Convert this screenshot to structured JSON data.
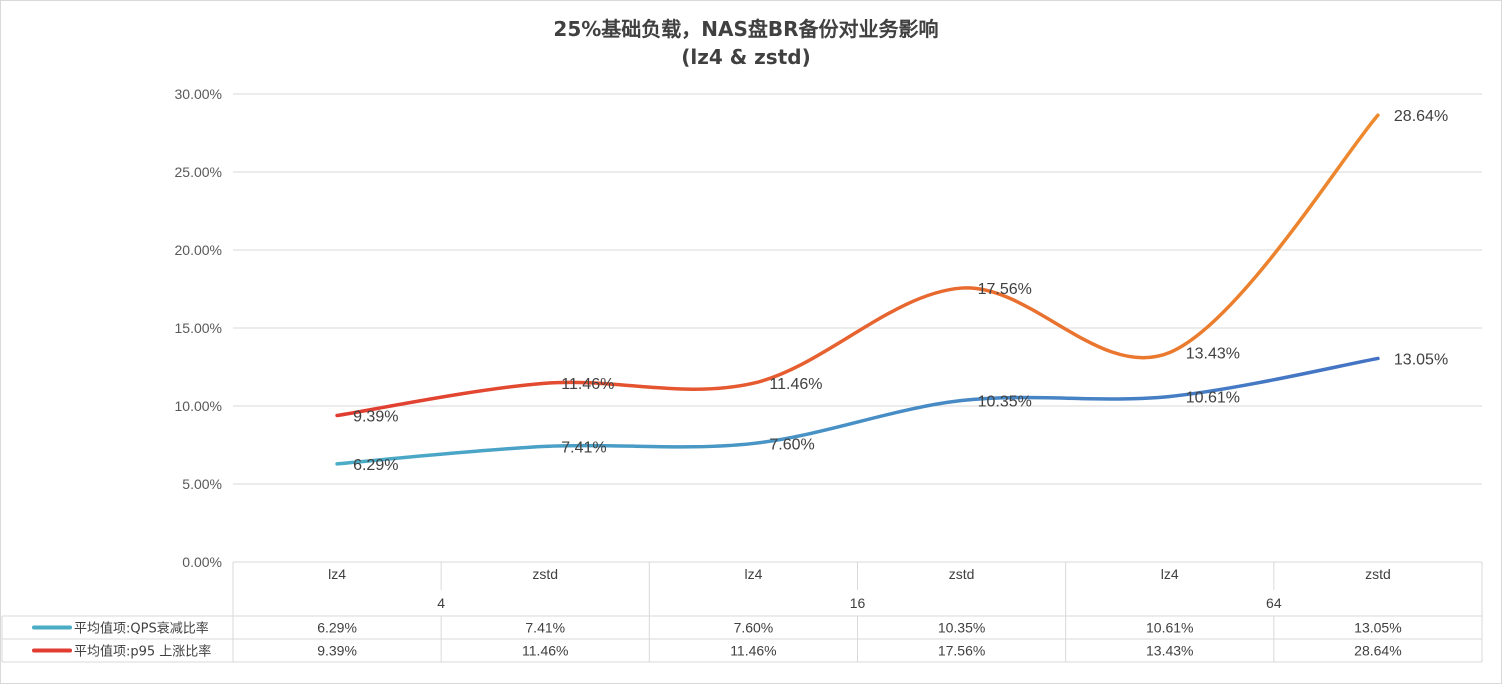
{
  "chart_data": {
    "type": "line",
    "title": "25%基础负载，NAS盘BR备份对业务影响",
    "subtitle": "(lz4 & zstd)",
    "categories": [
      "lz4",
      "zstd",
      "lz4",
      "zstd",
      "lz4",
      "zstd"
    ],
    "groups": [
      {
        "label": "4",
        "span": 2
      },
      {
        "label": "16",
        "span": 2
      },
      {
        "label": "64",
        "span": 2
      }
    ],
    "y_ticks": [
      "0.00%",
      "5.00%",
      "10.00%",
      "15.00%",
      "20.00%",
      "25.00%",
      "30.00%"
    ],
    "ylim": [
      0,
      30
    ],
    "grid": true,
    "legend": "data-table",
    "series": [
      {
        "name": "平均值项:QPS衰减比率",
        "values": [
          6.29,
          7.41,
          7.6,
          10.35,
          10.61,
          13.05
        ],
        "labels": [
          "6.29%",
          "7.41%",
          "7.60%",
          "10.35%",
          "10.61%",
          "13.05%"
        ],
        "color_start": "#4bacc6",
        "color_end": "#4472c4"
      },
      {
        "name": "平均值项:p95 上涨比率",
        "values": [
          9.39,
          11.46,
          11.46,
          17.56,
          13.43,
          28.64
        ],
        "labels": [
          "9.39%",
          "11.46%",
          "11.46%",
          "17.56%",
          "13.43%",
          "28.64%"
        ],
        "color_start": "#e03c31",
        "color_end": "#ed8a2e"
      }
    ]
  }
}
